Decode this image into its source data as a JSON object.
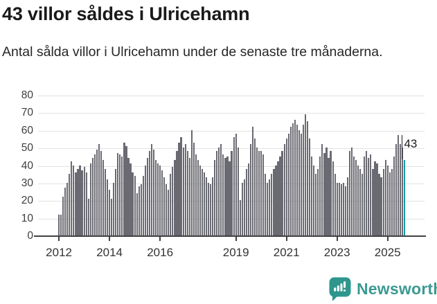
{
  "header": {
    "title": "43 villor såldes i Ulricehamn",
    "subtitle": "Antal sålda villor i Ulricehamn under de senaste tre månaderna."
  },
  "chart_data": {
    "type": "bar",
    "title": "43 villor såldes i Ulricehamn",
    "subtitle": "Antal sålda villor i Ulricehamn under de senaste tre månaderna.",
    "x_start": "2012-01",
    "x_end": "2025-09",
    "x_unit": "month",
    "x_tick_labels": [
      "2012",
      "2014",
      "2016",
      "2019",
      "2021",
      "2023",
      "2025"
    ],
    "y_ticks": [
      0,
      10,
      20,
      30,
      40,
      50,
      60,
      70,
      80
    ],
    "ylim": [
      0,
      80
    ],
    "grid": true,
    "bar_color": "#6a6a72",
    "highlight_color": "#14a1a9",
    "highlight_index": 164,
    "annotation": {
      "text": "43",
      "value": 43,
      "target": "last-bar"
    },
    "values": [
      12,
      12,
      22,
      27,
      30,
      35,
      42,
      40,
      36,
      38,
      40,
      37,
      39,
      36,
      21,
      41,
      44,
      46,
      49,
      52,
      48,
      43,
      38,
      32,
      26,
      21,
      30,
      38,
      47,
      46,
      45,
      53,
      51,
      44,
      41,
      36,
      34,
      24,
      28,
      29,
      34,
      40,
      44,
      48,
      52,
      49,
      43,
      41,
      40,
      37,
      33,
      29,
      26,
      35,
      39,
      43,
      48,
      53,
      56,
      50,
      52,
      48,
      44,
      60,
      53,
      46,
      43,
      40,
      38,
      36,
      33,
      30,
      29,
      33,
      43,
      48,
      50,
      52,
      46,
      44,
      45,
      42,
      48,
      56,
      58,
      50,
      20,
      30,
      32,
      38,
      41,
      52,
      62,
      55,
      50,
      48,
      48,
      46,
      35,
      30,
      32,
      35,
      38,
      40,
      42,
      45,
      48,
      52,
      55,
      58,
      62,
      64,
      66,
      63,
      60,
      58,
      63,
      69,
      65,
      55,
      45,
      40,
      35,
      38,
      45,
      52,
      47,
      50,
      44,
      48,
      42,
      35,
      30,
      30,
      29,
      30,
      28,
      33,
      48,
      50,
      45,
      43,
      40,
      38,
      35,
      45,
      48,
      44,
      46,
      38,
      42,
      41,
      35,
      33,
      38,
      43,
      40,
      36,
      38,
      45,
      52,
      57,
      52,
      50,
      43
    ]
  },
  "footer": {
    "brand": "Newsworthy",
    "brand_color": "#3a9a92",
    "icon_color": "#2e968c"
  }
}
